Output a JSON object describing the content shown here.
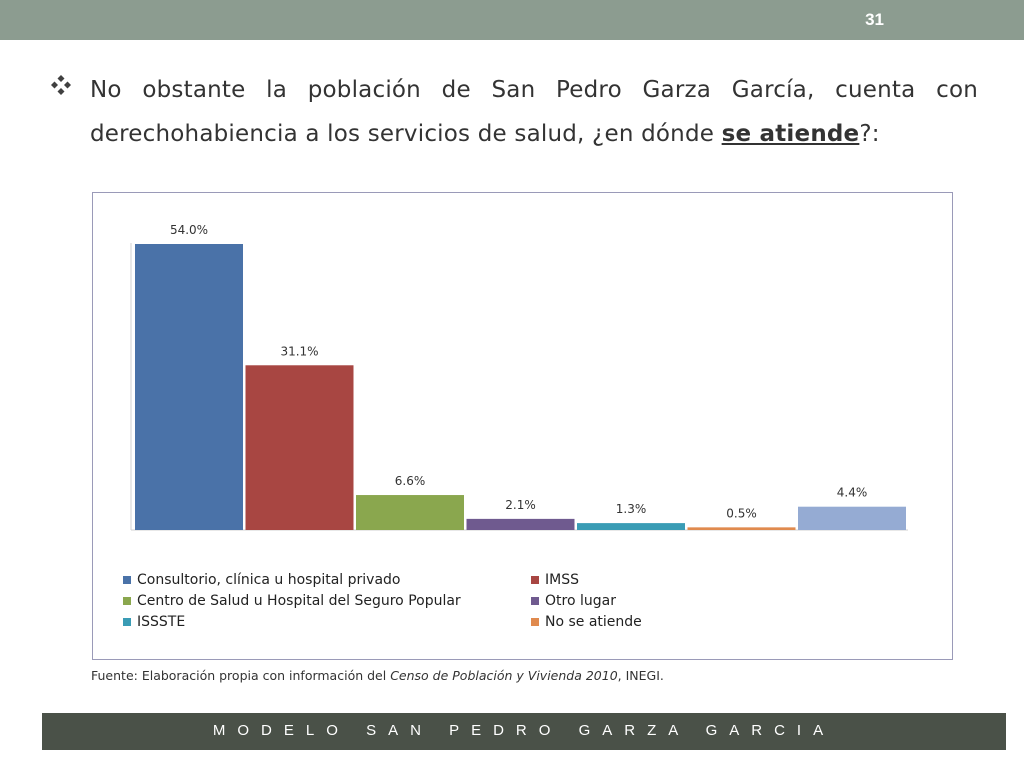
{
  "slide": {
    "number": "31",
    "heading_before": "No obstante la población de San Pedro Garza García, cuenta con derechohabiencia a los servicios de salud, ¿en dónde ",
    "heading_emphasis": "se atiende",
    "heading_after": "?:",
    "bullet_icon": "diamond-bullet-icon",
    "source_prefix": "Fuente: Elaboración propia con información del ",
    "source_italic": "Censo de Población y Vivienda  2010",
    "source_suffix": ", INEGI.",
    "footer": "MODELO SAN PEDRO GARZA GARCIA",
    "colors": {
      "top_bar": "#8c9c90",
      "footer_bar": "#4a5148"
    }
  },
  "chart_data": {
    "type": "bar",
    "title": "",
    "xlabel": "",
    "ylabel": "",
    "ylim": [
      0,
      60
    ],
    "grid": false,
    "legend_position": "bottom",
    "series": [
      {
        "name": "Consultorio, clínica u hospital privado",
        "value": 54.0,
        "label": "54.0%",
        "color": "#4a72a8"
      },
      {
        "name": "IMSS",
        "value": 31.1,
        "label": "31.1%",
        "color": "#a84642"
      },
      {
        "name": "Centro de Salud u Hospital del Seguro Popular",
        "value": 6.6,
        "label": "6.6%",
        "color": "#8aa74e"
      },
      {
        "name": "Otro lugar",
        "value": 2.1,
        "label": "2.1%",
        "color": "#6f5a8f"
      },
      {
        "name": "ISSSTE",
        "value": 1.3,
        "label": "1.3%",
        "color": "#3a9cb5"
      },
      {
        "name": "No se atiende",
        "value": 0.5,
        "label": "0.5%",
        "color": "#e08a4e"
      },
      {
        "name": "",
        "value": 4.4,
        "label": "4.4%",
        "color": "#95abd3"
      }
    ]
  }
}
